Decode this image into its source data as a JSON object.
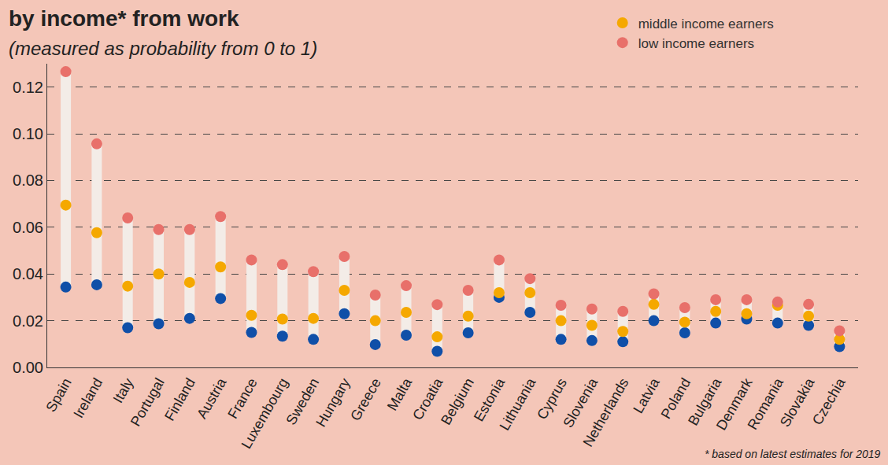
{
  "chart_data": {
    "type": "dot",
    "title": "by income* from work",
    "subtitle": "(measured as probability from 0 to 1)",
    "footnote": "* based on latest estimates for 2019",
    "categories": [
      "Spain",
      "Ireland",
      "Italy",
      "Portugal",
      "Finland",
      "Austria",
      "France",
      "Luxembourg",
      "Sweden",
      "Hungary",
      "Greece",
      "Malta",
      "Croatia",
      "Belgium",
      "Estonia",
      "Lithuania",
      "Cyprus",
      "Slovenia",
      "Netherlands",
      "Latvia",
      "Poland",
      "Bulgaria",
      "Denmark",
      "Romania",
      "Slovakia",
      "Czechia"
    ],
    "series": [
      {
        "color": "#0f4fa8",
        "values": [
          0.0344,
          0.0354,
          0.017,
          0.0187,
          0.021,
          0.0295,
          0.015,
          0.0134,
          0.012,
          0.023,
          0.0098,
          0.0138,
          0.0069,
          0.0148,
          0.03,
          0.0236,
          0.012,
          0.0115,
          0.011,
          0.02,
          0.0148,
          0.019,
          0.0207,
          0.019,
          0.018,
          0.0089
        ]
      },
      {
        "name": "middle income earners",
        "color": "#f5a800",
        "values": [
          0.0695,
          0.0577,
          0.0348,
          0.04,
          0.0364,
          0.043,
          0.0223,
          0.0207,
          0.021,
          0.033,
          0.02,
          0.0236,
          0.0131,
          0.022,
          0.032,
          0.032,
          0.02,
          0.018,
          0.0154,
          0.027,
          0.0194,
          0.024,
          0.023,
          0.0266,
          0.022,
          0.012
        ]
      },
      {
        "name": "low income earners",
        "color": "#e8706a",
        "values": [
          0.1266,
          0.0957,
          0.064,
          0.059,
          0.059,
          0.0646,
          0.046,
          0.044,
          0.041,
          0.0475,
          0.031,
          0.035,
          0.0269,
          0.033,
          0.046,
          0.038,
          0.0266,
          0.025,
          0.024,
          0.0315,
          0.0256,
          0.029,
          0.029,
          0.028,
          0.027,
          0.0157
        ]
      }
    ],
    "ylim": [
      0,
      0.13
    ],
    "yticks": [
      {
        "value": 0,
        "label": "0.00"
      },
      {
        "value": 0.02,
        "label": "0.02"
      },
      {
        "value": 0.04,
        "label": "0.04"
      },
      {
        "value": 0.06,
        "label": "0.06"
      },
      {
        "value": 0.08,
        "label": "0.08"
      },
      {
        "value": 0.1,
        "label": "0.10"
      },
      {
        "value": 0.12,
        "label": "0.12"
      }
    ],
    "grid": true,
    "legend": "top right"
  }
}
